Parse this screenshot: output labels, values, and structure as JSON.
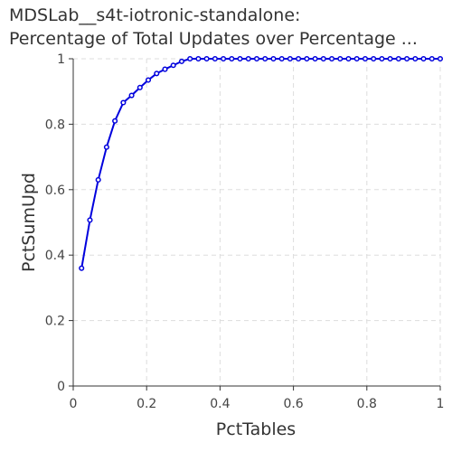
{
  "chart_data": {
    "type": "line",
    "title_lines": [
      "MDSLab__s4t-iotronic-standalone:",
      "Percentage of Total Updates over Percentage ..."
    ],
    "xlabel": "PctTables",
    "ylabel": "PctSumUpd",
    "xlim": [
      0,
      1
    ],
    "ylim": [
      0,
      1
    ],
    "x_ticks": [
      0,
      0.2,
      0.4,
      0.6,
      0.8,
      1
    ],
    "x_tick_labels": [
      "0",
      "0.2",
      "0.4",
      "0.6",
      "0.8",
      "1"
    ],
    "y_ticks": [
      0,
      0.2,
      0.4,
      0.6,
      0.8,
      1
    ],
    "y_tick_labels": [
      "0",
      "0.2",
      "0.4",
      "0.6",
      "0.8",
      "1"
    ],
    "grid": true,
    "legend": "none",
    "series": [
      {
        "color": "#0000dd",
        "points": [
          [
            0.0227,
            0.36
          ],
          [
            0.0455,
            0.507
          ],
          [
            0.0682,
            0.63
          ],
          [
            0.0909,
            0.73
          ],
          [
            0.1136,
            0.81
          ],
          [
            0.1364,
            0.866
          ],
          [
            0.1591,
            0.888
          ],
          [
            0.1818,
            0.912
          ],
          [
            0.2045,
            0.935
          ],
          [
            0.2273,
            0.955
          ],
          [
            0.25,
            0.968
          ],
          [
            0.2727,
            0.98
          ],
          [
            0.2955,
            0.992
          ],
          [
            0.3182,
            1.0
          ],
          [
            0.3409,
            1.0
          ],
          [
            0.3636,
            1.0
          ],
          [
            0.3864,
            1.0
          ],
          [
            0.4091,
            1.0
          ],
          [
            0.4318,
            1.0
          ],
          [
            0.4545,
            1.0
          ],
          [
            0.4773,
            1.0
          ],
          [
            0.5,
            1.0
          ],
          [
            0.5227,
            1.0
          ],
          [
            0.5455,
            1.0
          ],
          [
            0.5682,
            1.0
          ],
          [
            0.5909,
            1.0
          ],
          [
            0.6136,
            1.0
          ],
          [
            0.6364,
            1.0
          ],
          [
            0.6591,
            1.0
          ],
          [
            0.6818,
            1.0
          ],
          [
            0.7045,
            1.0
          ],
          [
            0.7273,
            1.0
          ],
          [
            0.75,
            1.0
          ],
          [
            0.7727,
            1.0
          ],
          [
            0.7955,
            1.0
          ],
          [
            0.8182,
            1.0
          ],
          [
            0.8409,
            1.0
          ],
          [
            0.8636,
            1.0
          ],
          [
            0.8864,
            1.0
          ],
          [
            0.9091,
            1.0
          ],
          [
            0.9318,
            1.0
          ],
          [
            0.9545,
            1.0
          ],
          [
            0.9773,
            1.0
          ],
          [
            1.0,
            1.0
          ]
        ]
      }
    ]
  }
}
